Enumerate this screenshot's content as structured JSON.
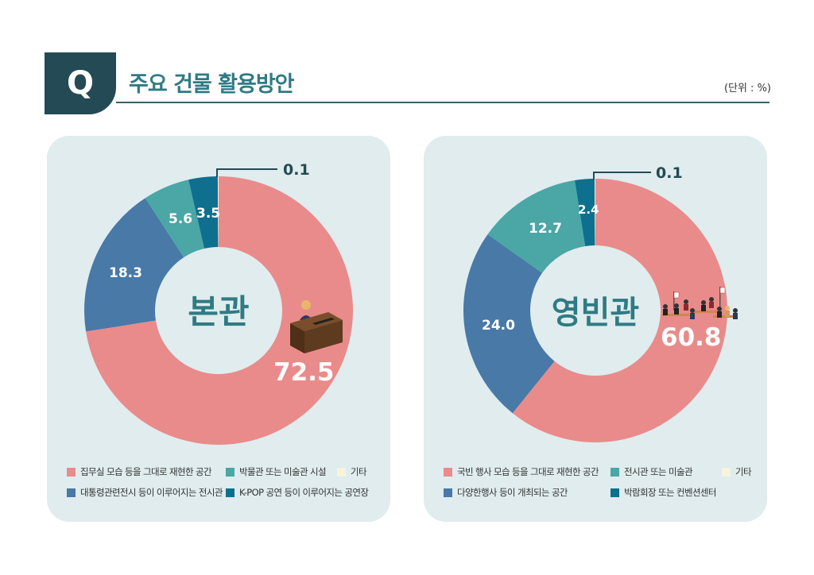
{
  "header": {
    "badge": "Q",
    "title": "주요 건물 활용방안",
    "unit": "(단위 : %)"
  },
  "colors": {
    "pink": "#e98b8b",
    "steel_blue": "#4879a7",
    "teal": "#4ba6a6",
    "dark_teal": "#0e6f8f",
    "cream": "#f7f4dc",
    "panel_bg": "#e0ecee",
    "title": "#2f7b84",
    "dark": "#244a55"
  },
  "chart_data": [
    {
      "type": "pie",
      "title": "본관",
      "categories": [
        "집무실 모습 등을 그대로 재현한 공간",
        "대통령 관련 전시 등이 이루어지는 전시관",
        "박물관 또는 미술관 시설",
        "K-POP 공연 등이 이루어지는 공연장",
        "기타"
      ],
      "values": [
        72.5,
        18.3,
        5.6,
        3.5,
        0.1
      ],
      "labels": [
        "72.5",
        "18.3",
        "5.6",
        "3.5",
        "0.1"
      ],
      "unit": "%",
      "donut": true,
      "icon": "desk-official-icon"
    },
    {
      "type": "pie",
      "title": "영빈관",
      "categories": [
        "국빈 행사 모습 등을 그대로 재현한 공간",
        "다양한 행사 등이 개최되는 공간",
        "전시관 또는 미술관",
        "박람회장 또는 컨벤션센터",
        "기타"
      ],
      "values": [
        60.8,
        24.0,
        12.7,
        2.4,
        0.1
      ],
      "labels": [
        "60.8",
        "24.0",
        "12.7",
        "2.4",
        "0.1"
      ],
      "unit": "%",
      "donut": true,
      "icon": "state-banquet-icon"
    }
  ],
  "panels": {
    "left": {
      "center_label": "본관",
      "labels": {
        "main": "72.5",
        "s2": "18.3",
        "s3": "5.6",
        "s4": "3.5",
        "other": "0.1"
      },
      "legend": [
        {
          "label": "집무실 모습 등을 그대로 재현한 공간",
          "color": "#e98b8b"
        },
        {
          "label": "박물관 또는 미술관 시설",
          "color": "#4ba6a6"
        },
        {
          "label": "기타",
          "color": "#f7f4dc"
        },
        {
          "label": "대통령관련전시 등이 이루어지는 전시관",
          "color": "#4879a7"
        },
        {
          "label": "K-POP 공연 등이 이루어지는 공연장",
          "color": "#0e6f8f"
        }
      ]
    },
    "right": {
      "center_label": "영빈관",
      "labels": {
        "main": "60.8",
        "s2": "24.0",
        "s3": "12.7",
        "s4": "2.4",
        "other": "0.1"
      },
      "legend": [
        {
          "label": "국빈 행사 모습 등을 그대로 재현한 공간",
          "color": "#e98b8b"
        },
        {
          "label": "전시관 또는 미술관",
          "color": "#4ba6a6"
        },
        {
          "label": "기타",
          "color": "#f7f4dc"
        },
        {
          "label": "다양한행사 등이 개최되는 공간",
          "color": "#4879a7"
        },
        {
          "label": "박람회장 또는 컨벤션센터",
          "color": "#0e6f8f"
        }
      ]
    }
  }
}
